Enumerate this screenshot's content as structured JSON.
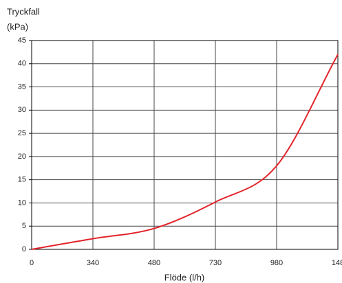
{
  "chart_data": {
    "type": "line",
    "title": "Tryckfall",
    "subtitle": "(kPa)",
    "x_label": "Flöde  (l/h)",
    "categories": [
      "0",
      "340",
      "480",
      "730",
      "980",
      "148"
    ],
    "series": [
      {
        "name": null,
        "color": "#e2252b",
        "values": [
          0,
          2.3,
          4.5,
          10.2,
          18,
          42
        ]
      }
    ],
    "ylim": [
      0,
      45
    ],
    "yticks": [
      0,
      5,
      10,
      15,
      20,
      25,
      30,
      35,
      40,
      45
    ],
    "grid": true
  }
}
